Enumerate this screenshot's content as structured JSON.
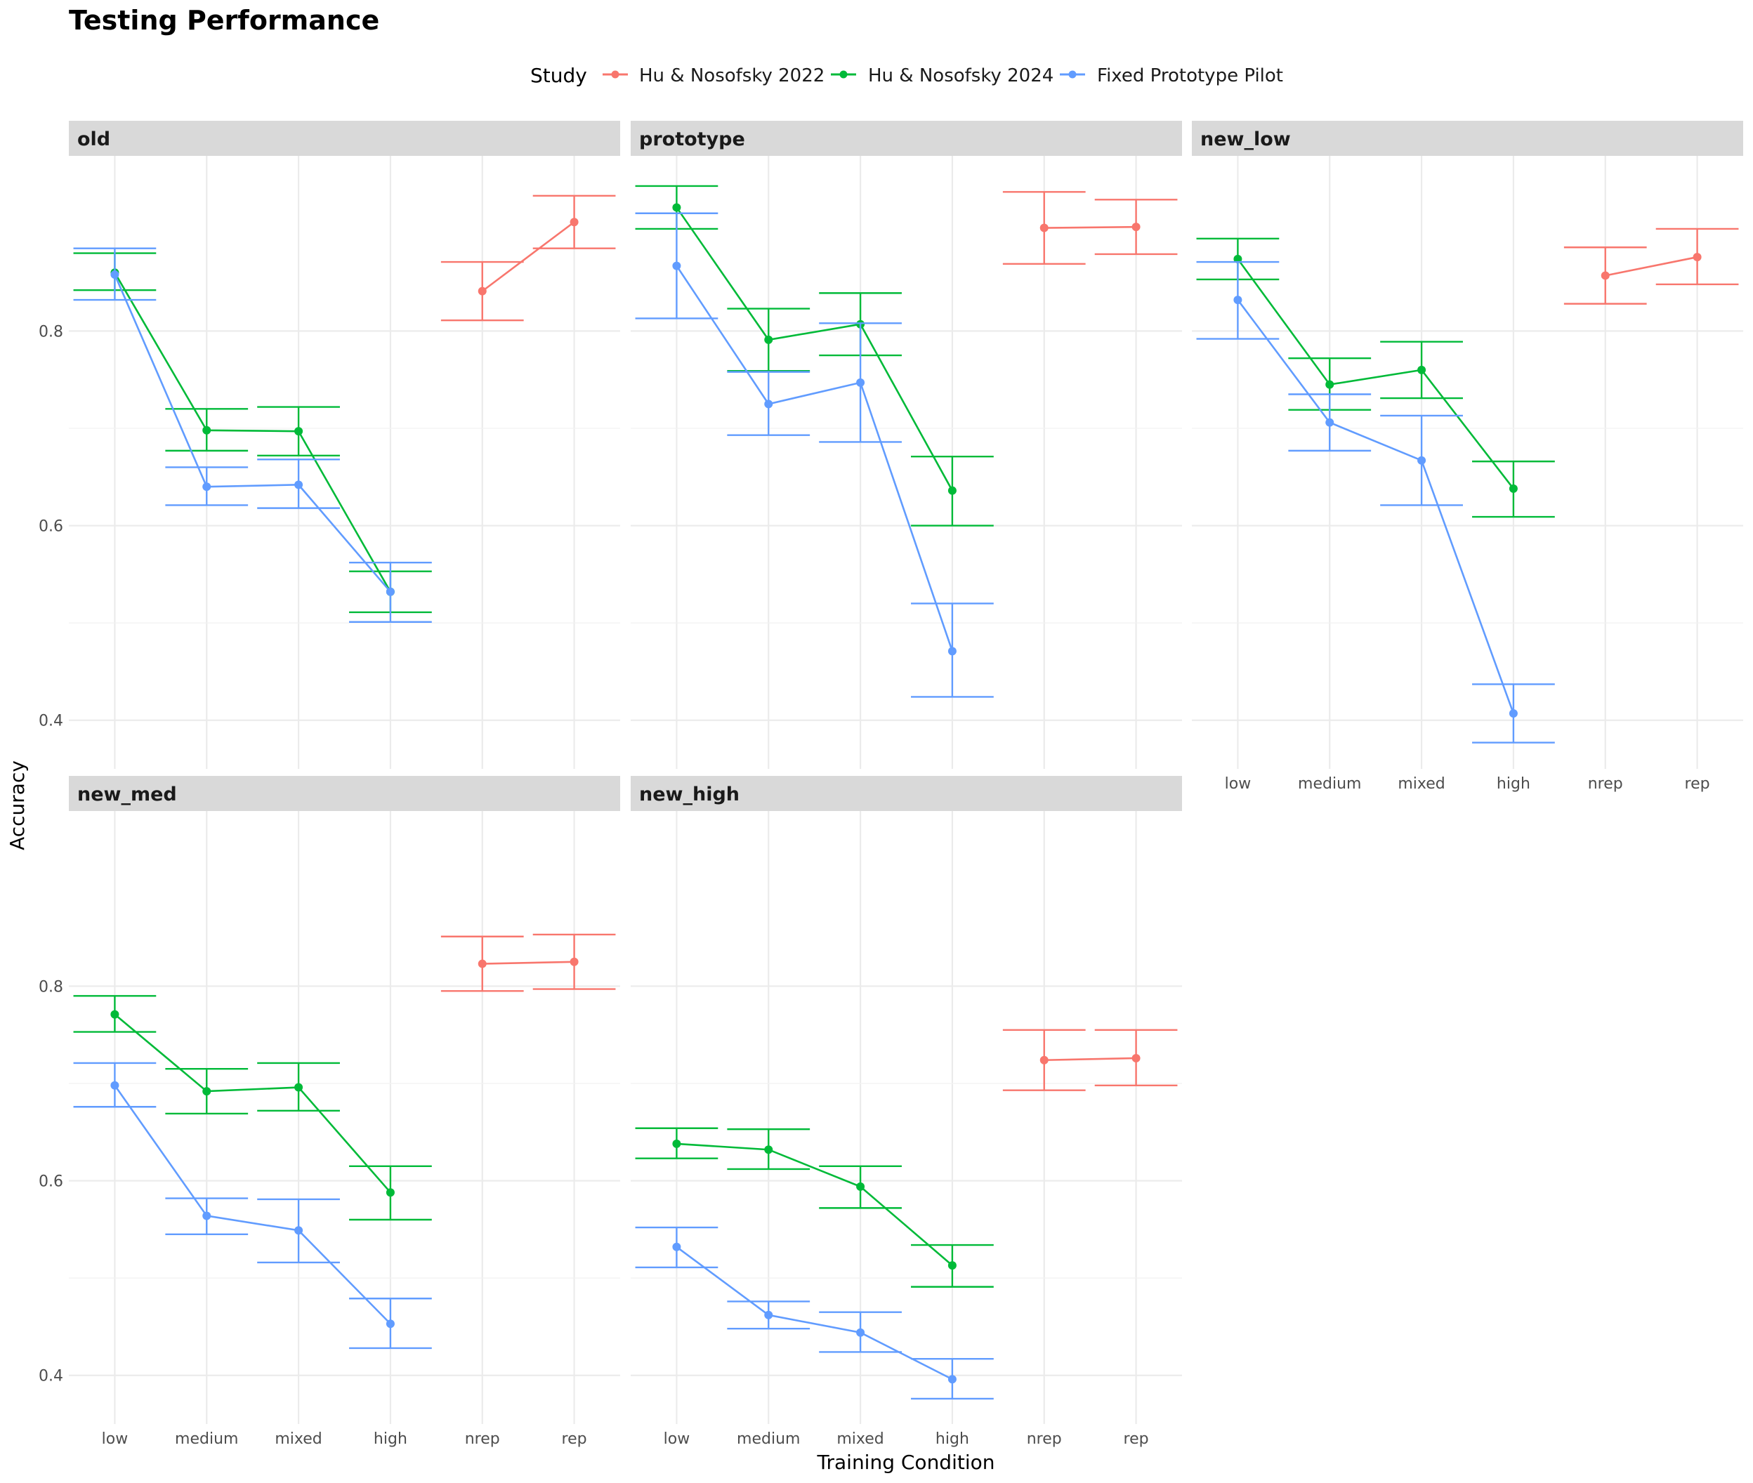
{
  "title": "Testing Performance",
  "legend": {
    "title": "Study",
    "entries": [
      {
        "label": "Hu & Nosofsky 2022",
        "color": "#F8766D"
      },
      {
        "label": "Hu & Nosofsky 2024",
        "color": "#00BA38"
      },
      {
        "label": "Fixed Prototype Pilot",
        "color": "#619CFF"
      }
    ]
  },
  "chart_data": {
    "type": "line",
    "xlabel": "Training Condition",
    "ylabel": "Accuracy",
    "categories": [
      "low",
      "medium",
      "mixed",
      "high",
      "nrep",
      "rep"
    ],
    "ylim": [
      0.35,
      0.98
    ],
    "yticks": [
      0.4,
      0.6,
      0.8
    ],
    "ytick_labels": [
      "0.4",
      "0.6",
      "0.8"
    ],
    "grid": true,
    "error_bars": true,
    "facets": [
      {
        "name": "old",
        "series": [
          {
            "study": "Hu & Nosofsky 2022",
            "points": [
              {
                "x": "nrep",
                "y": 0.841,
                "lo": 0.811,
                "hi": 0.871
              },
              {
                "x": "rep",
                "y": 0.912,
                "lo": 0.885,
                "hi": 0.939
              }
            ]
          },
          {
            "study": "Hu & Nosofsky 2024",
            "points": [
              {
                "x": "low",
                "y": 0.86,
                "lo": 0.842,
                "hi": 0.88
              },
              {
                "x": "medium",
                "y": 0.698,
                "lo": 0.677,
                "hi": 0.72
              },
              {
                "x": "mixed",
                "y": 0.697,
                "lo": 0.672,
                "hi": 0.722
              },
              {
                "x": "high",
                "y": 0.532,
                "lo": 0.511,
                "hi": 0.553
              }
            ]
          },
          {
            "study": "Fixed Prototype Pilot",
            "points": [
              {
                "x": "low",
                "y": 0.858,
                "lo": 0.832,
                "hi": 0.885
              },
              {
                "x": "medium",
                "y": 0.64,
                "lo": 0.621,
                "hi": 0.66
              },
              {
                "x": "mixed",
                "y": 0.642,
                "lo": 0.618,
                "hi": 0.668
              },
              {
                "x": "high",
                "y": 0.532,
                "lo": 0.501,
                "hi": 0.562
              }
            ]
          }
        ]
      },
      {
        "name": "prototype",
        "series": [
          {
            "study": "Hu & Nosofsky 2022",
            "points": [
              {
                "x": "nrep",
                "y": 0.906,
                "lo": 0.869,
                "hi": 0.943
              },
              {
                "x": "rep",
                "y": 0.907,
                "lo": 0.879,
                "hi": 0.935
              }
            ]
          },
          {
            "study": "Hu & Nosofsky 2024",
            "points": [
              {
                "x": "low",
                "y": 0.927,
                "lo": 0.905,
                "hi": 0.949
              },
              {
                "x": "medium",
                "y": 0.791,
                "lo": 0.759,
                "hi": 0.823
              },
              {
                "x": "mixed",
                "y": 0.807,
                "lo": 0.775,
                "hi": 0.839
              },
              {
                "x": "high",
                "y": 0.636,
                "lo": 0.6,
                "hi": 0.671
              }
            ]
          },
          {
            "study": "Fixed Prototype Pilot",
            "points": [
              {
                "x": "low",
                "y": 0.867,
                "lo": 0.813,
                "hi": 0.921
              },
              {
                "x": "medium",
                "y": 0.725,
                "lo": 0.693,
                "hi": 0.758
              },
              {
                "x": "mixed",
                "y": 0.747,
                "lo": 0.686,
                "hi": 0.808
              },
              {
                "x": "high",
                "y": 0.471,
                "lo": 0.424,
                "hi": 0.52
              }
            ]
          }
        ]
      },
      {
        "name": "new_low",
        "series": [
          {
            "study": "Hu & Nosofsky 2022",
            "points": [
              {
                "x": "nrep",
                "y": 0.857,
                "lo": 0.828,
                "hi": 0.886
              },
              {
                "x": "rep",
                "y": 0.876,
                "lo": 0.848,
                "hi": 0.905
              }
            ]
          },
          {
            "study": "Hu & Nosofsky 2024",
            "points": [
              {
                "x": "low",
                "y": 0.874,
                "lo": 0.853,
                "hi": 0.895
              },
              {
                "x": "medium",
                "y": 0.745,
                "lo": 0.719,
                "hi": 0.772
              },
              {
                "x": "mixed",
                "y": 0.76,
                "lo": 0.731,
                "hi": 0.789
              },
              {
                "x": "high",
                "y": 0.638,
                "lo": 0.609,
                "hi": 0.666
              }
            ]
          },
          {
            "study": "Fixed Prototype Pilot",
            "points": [
              {
                "x": "low",
                "y": 0.832,
                "lo": 0.792,
                "hi": 0.871
              },
              {
                "x": "medium",
                "y": 0.706,
                "lo": 0.677,
                "hi": 0.735
              },
              {
                "x": "mixed",
                "y": 0.667,
                "lo": 0.621,
                "hi": 0.713
              },
              {
                "x": "high",
                "y": 0.407,
                "lo": 0.377,
                "hi": 0.437
              }
            ]
          }
        ]
      },
      {
        "name": "new_med",
        "series": [
          {
            "study": "Hu & Nosofsky 2022",
            "points": [
              {
                "x": "nrep",
                "y": 0.823,
                "lo": 0.795,
                "hi": 0.851
              },
              {
                "x": "rep",
                "y": 0.825,
                "lo": 0.797,
                "hi": 0.853
              }
            ]
          },
          {
            "study": "Hu & Nosofsky 2024",
            "points": [
              {
                "x": "low",
                "y": 0.771,
                "lo": 0.753,
                "hi": 0.79
              },
              {
                "x": "medium",
                "y": 0.692,
                "lo": 0.669,
                "hi": 0.715
              },
              {
                "x": "mixed",
                "y": 0.696,
                "lo": 0.672,
                "hi": 0.721
              },
              {
                "x": "high",
                "y": 0.588,
                "lo": 0.56,
                "hi": 0.615
              }
            ]
          },
          {
            "study": "Fixed Prototype Pilot",
            "points": [
              {
                "x": "low",
                "y": 0.698,
                "lo": 0.676,
                "hi": 0.721
              },
              {
                "x": "medium",
                "y": 0.564,
                "lo": 0.545,
                "hi": 0.582
              },
              {
                "x": "mixed",
                "y": 0.549,
                "lo": 0.516,
                "hi": 0.581
              },
              {
                "x": "high",
                "y": 0.453,
                "lo": 0.428,
                "hi": 0.479
              }
            ]
          }
        ]
      },
      {
        "name": "new_high",
        "series": [
          {
            "study": "Hu & Nosofsky 2022",
            "points": [
              {
                "x": "nrep",
                "y": 0.724,
                "lo": 0.693,
                "hi": 0.755
              },
              {
                "x": "rep",
                "y": 0.726,
                "lo": 0.698,
                "hi": 0.755
              }
            ]
          },
          {
            "study": "Hu & Nosofsky 2024",
            "points": [
              {
                "x": "low",
                "y": 0.638,
                "lo": 0.623,
                "hi": 0.654
              },
              {
                "x": "medium",
                "y": 0.632,
                "lo": 0.612,
                "hi": 0.653
              },
              {
                "x": "mixed",
                "y": 0.594,
                "lo": 0.572,
                "hi": 0.615
              },
              {
                "x": "high",
                "y": 0.513,
                "lo": 0.491,
                "hi": 0.534
              }
            ]
          },
          {
            "study": "Fixed Prototype Pilot",
            "points": [
              {
                "x": "low",
                "y": 0.532,
                "lo": 0.511,
                "hi": 0.552
              },
              {
                "x": "medium",
                "y": 0.462,
                "lo": 0.448,
                "hi": 0.476
              },
              {
                "x": "mixed",
                "y": 0.444,
                "lo": 0.424,
                "hi": 0.465
              },
              {
                "x": "high",
                "y": 0.396,
                "lo": 0.376,
                "hi": 0.417
              }
            ]
          }
        ]
      }
    ]
  }
}
